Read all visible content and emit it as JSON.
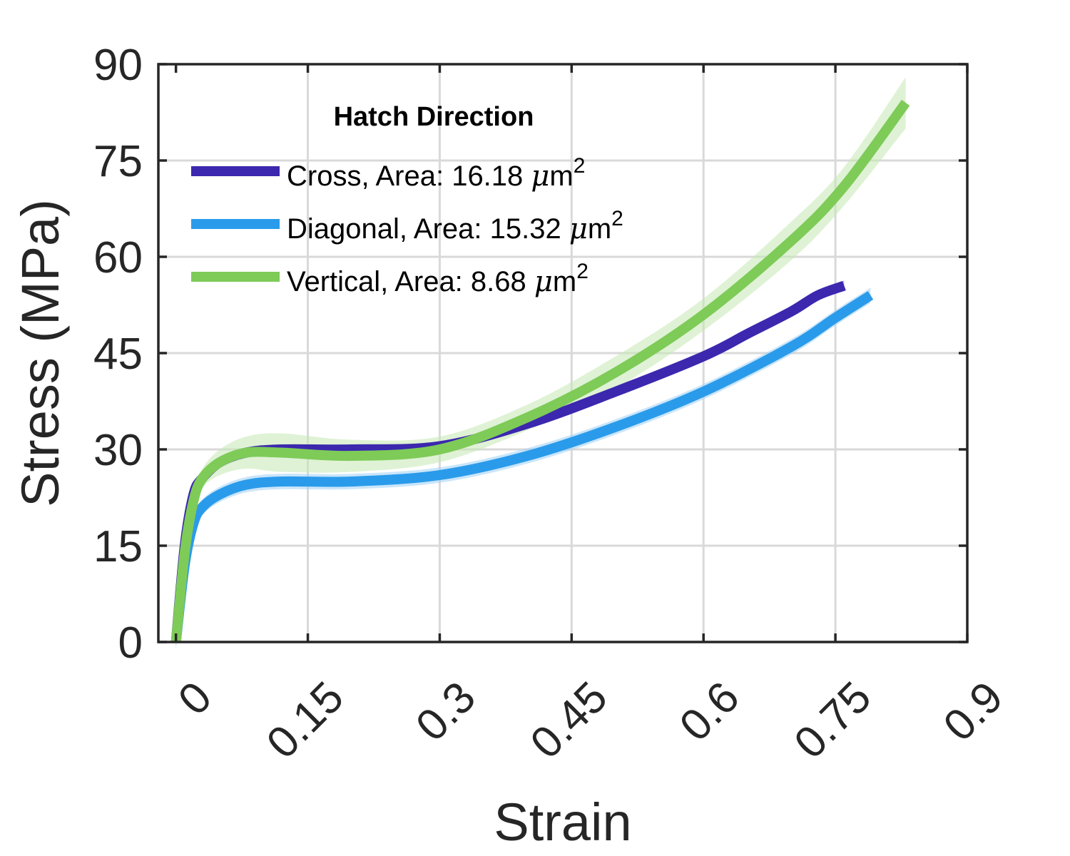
{
  "chart_data": {
    "type": "line",
    "xlabel": "Strain",
    "ylabel": "Stress (MPa)",
    "xlim": [
      -0.02,
      0.9
    ],
    "ylim": [
      0,
      90
    ],
    "xticks": [
      0,
      0.15,
      0.3,
      0.45,
      0.6,
      0.75,
      0.9
    ],
    "xtick_labels": [
      "0",
      "0.15",
      "0.3",
      "0.45",
      "0.6",
      "0.75",
      "0.9"
    ],
    "yticks": [
      0,
      15,
      30,
      45,
      60,
      75,
      90
    ],
    "ytick_labels": [
      "0",
      "15",
      "30",
      "45",
      "60",
      "75",
      "90"
    ],
    "grid": true,
    "legend": {
      "title": "Hatch Direction",
      "placement": "top-left",
      "unit": "μm",
      "exponent": "2"
    },
    "series": [
      {
        "name": "Cross, Area: 16.18 ",
        "color": "#3b28ae",
        "band_color": "#8a80c8",
        "x": [
          0,
          0.01,
          0.02,
          0.03,
          0.05,
          0.08,
          0.12,
          0.2,
          0.3,
          0.4,
          0.5,
          0.6,
          0.65,
          0.7,
          0.73,
          0.76
        ],
        "y": [
          0,
          15,
          23,
          25.5,
          28,
          29.5,
          30,
          30,
          30.5,
          34,
          39,
          44.5,
          48,
          51.5,
          54,
          55.5
        ],
        "band": [
          0.8,
          0.8,
          0.8,
          0.8,
          0.8,
          0.8,
          0.8,
          0.8,
          0.8,
          0.8,
          0.8,
          0.8,
          0.8,
          0.8,
          0.8,
          0.8
        ]
      },
      {
        "name": "Diagonal, Area: 15.32 ",
        "color": "#2a9bea",
        "band_color": "#9fd0f5",
        "x": [
          0,
          0.01,
          0.02,
          0.03,
          0.05,
          0.08,
          0.12,
          0.2,
          0.3,
          0.4,
          0.5,
          0.6,
          0.7,
          0.75,
          0.79
        ],
        "y": [
          0,
          12,
          18.5,
          21,
          23,
          24.5,
          25,
          25,
          26,
          29,
          33.5,
          39,
          46,
          50.5,
          54
        ],
        "band": [
          1.2,
          1.2,
          1.2,
          1.2,
          1.2,
          1.2,
          1.2,
          1.2,
          1.2,
          1.2,
          1.2,
          1.2,
          1.2,
          1.2,
          1.2
        ]
      },
      {
        "name": "Vertical, Area: 8.68 ",
        "color": "#7ecb58",
        "band_color": "#c5e8b2",
        "x": [
          0,
          0.01,
          0.02,
          0.03,
          0.05,
          0.08,
          0.12,
          0.2,
          0.3,
          0.4,
          0.5,
          0.6,
          0.7,
          0.76,
          0.83
        ],
        "y": [
          0,
          14,
          22,
          25.5,
          28,
          29.5,
          29.5,
          29,
          30,
          35,
          42,
          51,
          62.5,
          71,
          84
        ],
        "band": [
          1,
          1,
          1,
          1.5,
          2,
          2.5,
          3,
          2.5,
          2,
          2,
          2.5,
          2.5,
          3,
          3,
          4
        ]
      }
    ]
  }
}
